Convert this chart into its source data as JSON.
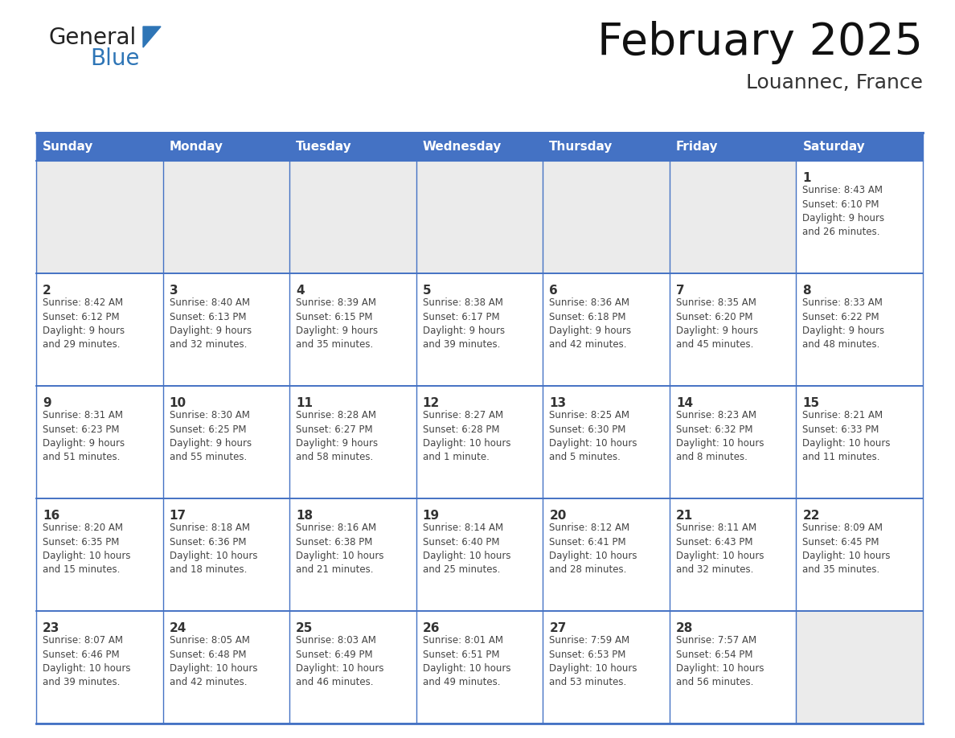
{
  "title": "February 2025",
  "subtitle": "Louannec, France",
  "days_of_week": [
    "Sunday",
    "Monday",
    "Tuesday",
    "Wednesday",
    "Thursday",
    "Friday",
    "Saturday"
  ],
  "header_bg": "#4472C4",
  "header_text": "#FFFFFF",
  "cell_bg_light": "#EBEBEB",
  "cell_bg_white": "#FFFFFF",
  "border_color": "#4472C4",
  "day_number_color": "#333333",
  "info_text_color": "#444444",
  "logo_general_color": "#222222",
  "logo_blue_color": "#2E75B6",
  "logo_triangle_color": "#2E75B6",
  "title_color": "#111111",
  "subtitle_color": "#333333",
  "calendar_data": [
    [
      {
        "day": null,
        "info": null
      },
      {
        "day": null,
        "info": null
      },
      {
        "day": null,
        "info": null
      },
      {
        "day": null,
        "info": null
      },
      {
        "day": null,
        "info": null
      },
      {
        "day": null,
        "info": null
      },
      {
        "day": 1,
        "info": "Sunrise: 8:43 AM\nSunset: 6:10 PM\nDaylight: 9 hours\nand 26 minutes."
      }
    ],
    [
      {
        "day": 2,
        "info": "Sunrise: 8:42 AM\nSunset: 6:12 PM\nDaylight: 9 hours\nand 29 minutes."
      },
      {
        "day": 3,
        "info": "Sunrise: 8:40 AM\nSunset: 6:13 PM\nDaylight: 9 hours\nand 32 minutes."
      },
      {
        "day": 4,
        "info": "Sunrise: 8:39 AM\nSunset: 6:15 PM\nDaylight: 9 hours\nand 35 minutes."
      },
      {
        "day": 5,
        "info": "Sunrise: 8:38 AM\nSunset: 6:17 PM\nDaylight: 9 hours\nand 39 minutes."
      },
      {
        "day": 6,
        "info": "Sunrise: 8:36 AM\nSunset: 6:18 PM\nDaylight: 9 hours\nand 42 minutes."
      },
      {
        "day": 7,
        "info": "Sunrise: 8:35 AM\nSunset: 6:20 PM\nDaylight: 9 hours\nand 45 minutes."
      },
      {
        "day": 8,
        "info": "Sunrise: 8:33 AM\nSunset: 6:22 PM\nDaylight: 9 hours\nand 48 minutes."
      }
    ],
    [
      {
        "day": 9,
        "info": "Sunrise: 8:31 AM\nSunset: 6:23 PM\nDaylight: 9 hours\nand 51 minutes."
      },
      {
        "day": 10,
        "info": "Sunrise: 8:30 AM\nSunset: 6:25 PM\nDaylight: 9 hours\nand 55 minutes."
      },
      {
        "day": 11,
        "info": "Sunrise: 8:28 AM\nSunset: 6:27 PM\nDaylight: 9 hours\nand 58 minutes."
      },
      {
        "day": 12,
        "info": "Sunrise: 8:27 AM\nSunset: 6:28 PM\nDaylight: 10 hours\nand 1 minute."
      },
      {
        "day": 13,
        "info": "Sunrise: 8:25 AM\nSunset: 6:30 PM\nDaylight: 10 hours\nand 5 minutes."
      },
      {
        "day": 14,
        "info": "Sunrise: 8:23 AM\nSunset: 6:32 PM\nDaylight: 10 hours\nand 8 minutes."
      },
      {
        "day": 15,
        "info": "Sunrise: 8:21 AM\nSunset: 6:33 PM\nDaylight: 10 hours\nand 11 minutes."
      }
    ],
    [
      {
        "day": 16,
        "info": "Sunrise: 8:20 AM\nSunset: 6:35 PM\nDaylight: 10 hours\nand 15 minutes."
      },
      {
        "day": 17,
        "info": "Sunrise: 8:18 AM\nSunset: 6:36 PM\nDaylight: 10 hours\nand 18 minutes."
      },
      {
        "day": 18,
        "info": "Sunrise: 8:16 AM\nSunset: 6:38 PM\nDaylight: 10 hours\nand 21 minutes."
      },
      {
        "day": 19,
        "info": "Sunrise: 8:14 AM\nSunset: 6:40 PM\nDaylight: 10 hours\nand 25 minutes."
      },
      {
        "day": 20,
        "info": "Sunrise: 8:12 AM\nSunset: 6:41 PM\nDaylight: 10 hours\nand 28 minutes."
      },
      {
        "day": 21,
        "info": "Sunrise: 8:11 AM\nSunset: 6:43 PM\nDaylight: 10 hours\nand 32 minutes."
      },
      {
        "day": 22,
        "info": "Sunrise: 8:09 AM\nSunset: 6:45 PM\nDaylight: 10 hours\nand 35 minutes."
      }
    ],
    [
      {
        "day": 23,
        "info": "Sunrise: 8:07 AM\nSunset: 6:46 PM\nDaylight: 10 hours\nand 39 minutes."
      },
      {
        "day": 24,
        "info": "Sunrise: 8:05 AM\nSunset: 6:48 PM\nDaylight: 10 hours\nand 42 minutes."
      },
      {
        "day": 25,
        "info": "Sunrise: 8:03 AM\nSunset: 6:49 PM\nDaylight: 10 hours\nand 46 minutes."
      },
      {
        "day": 26,
        "info": "Sunrise: 8:01 AM\nSunset: 6:51 PM\nDaylight: 10 hours\nand 49 minutes."
      },
      {
        "day": 27,
        "info": "Sunrise: 7:59 AM\nSunset: 6:53 PM\nDaylight: 10 hours\nand 53 minutes."
      },
      {
        "day": 28,
        "info": "Sunrise: 7:57 AM\nSunset: 6:54 PM\nDaylight: 10 hours\nand 56 minutes."
      },
      {
        "day": null,
        "info": null
      }
    ]
  ]
}
